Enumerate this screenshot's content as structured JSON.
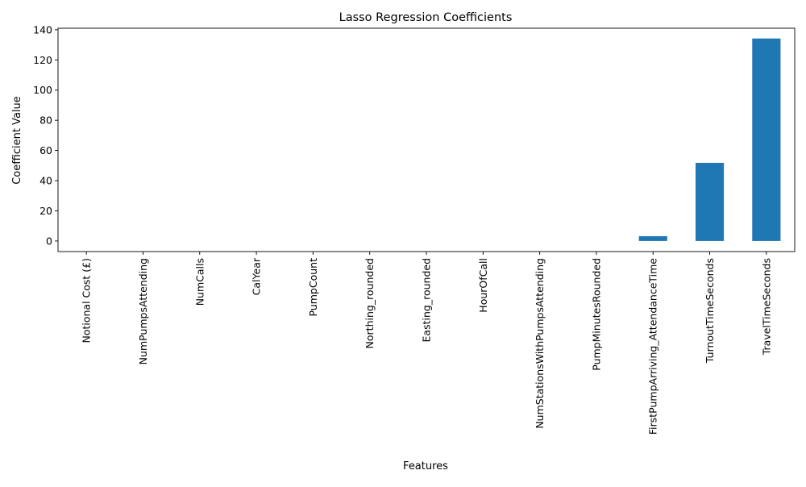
{
  "chart_data": {
    "type": "bar",
    "title": "Lasso Regression Coefficients",
    "xlabel": "Features",
    "ylabel": "Coefficient Value",
    "categories": [
      "Notional Cost (£)",
      "NumPumpsAttending",
      "NumCalls",
      "CalYear",
      "PumpCount",
      "Northing_rounded",
      "Easting_rounded",
      "HourOfCall",
      "NumStationsWithPumpsAttending",
      "PumpMinutesRounded",
      "FirstPumpArriving_AttendanceTime",
      "TurnoutTimeSeconds",
      "TravelTimeSeconds"
    ],
    "values": [
      0,
      0,
      0,
      0,
      0,
      0,
      0,
      0,
      0,
      0,
      3.2,
      51.8,
      134.2
    ],
    "ylim": [
      -7,
      141
    ],
    "yticks": [
      0,
      20,
      40,
      60,
      80,
      100,
      120,
      140
    ],
    "bar_color": "#1f77b4",
    "grid": false,
    "legend": false
  }
}
